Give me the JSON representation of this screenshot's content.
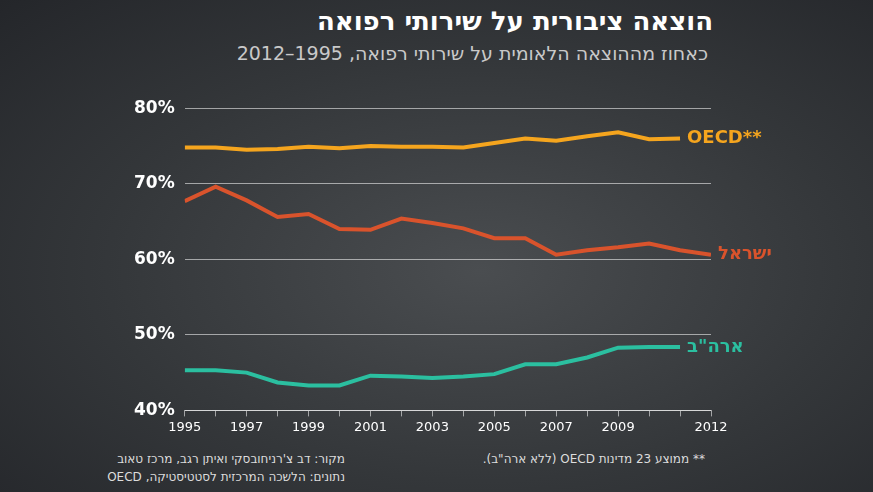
{
  "chart_data": {
    "type": "line",
    "title": "הוצאה ציבורית על שירותי רפואה",
    "subtitle": "כאחוז מההוצאה הלאומית על שירותי רפואה, 1995–2012",
    "categories": [
      "1995",
      null,
      "1997",
      null,
      "1999",
      null,
      "2001",
      null,
      "2003",
      null,
      "2005",
      null,
      "2007",
      null,
      "2009",
      null,
      null,
      "2012"
    ],
    "series": [
      {
        "name": "OECD**",
        "color": "#f5a51e",
        "values": [
          74.8,
          74.8,
          74.5,
          74.6,
          74.9,
          74.7,
          75.0,
          74.9,
          74.9,
          74.8,
          75.4,
          76.0,
          75.7,
          76.3,
          76.8,
          75.9,
          76.0,
          null
        ]
      },
      {
        "name": "ישראל",
        "color": "#d9532c",
        "values": [
          67.7,
          69.6,
          67.8,
          65.6,
          66.0,
          64.0,
          63.9,
          65.4,
          64.8,
          64.1,
          62.8,
          62.8,
          60.6,
          61.2,
          61.6,
          62.1,
          61.2,
          60.6
        ]
      },
      {
        "name": "ארה\"ב",
        "color": "#2bbfa0",
        "values": [
          45.3,
          45.3,
          45.0,
          43.7,
          43.3,
          43.3,
          44.6,
          44.5,
          44.3,
          44.5,
          44.8,
          46.1,
          46.1,
          47.0,
          48.3,
          48.4,
          48.4,
          null
        ]
      }
    ],
    "ylim": [
      40,
      80
    ],
    "yticks": [
      {
        "value": 40,
        "label": "40%"
      },
      {
        "value": 50,
        "label": "50%"
      },
      {
        "value": 60,
        "label": "60%"
      },
      {
        "value": 70,
        "label": "70%"
      },
      {
        "value": 80,
        "label": "80%"
      }
    ],
    "grid": true,
    "footnote": "** ממוצע 23 מדינות OECD (ללא ארה\"ב).",
    "source": [
      "מקור: דב צ'רניחובסקי ואיתן רגב, מרכז טאוב",
      "נתונים: הלשכה המרכזית לסטטיסטיקה, OECD"
    ]
  }
}
